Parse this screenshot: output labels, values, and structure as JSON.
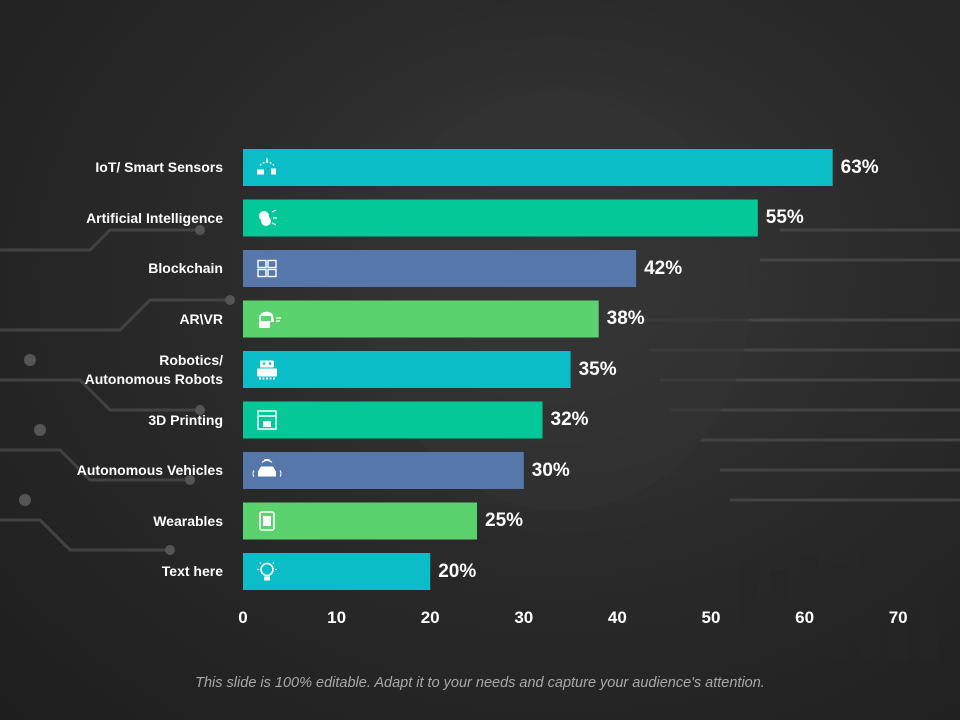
{
  "chart_data": {
    "type": "bar",
    "orientation": "horizontal",
    "categories": [
      "IoT/ Smart Sensors",
      "Artificial Intelligence",
      "Blockchain",
      "AR\\VR",
      "Robotics/\nAutonomous Robots",
      "3D Printing",
      "Autonomous Vehicles",
      "Wearables",
      "Text here"
    ],
    "values": [
      63,
      55,
      42,
      38,
      35,
      32,
      30,
      25,
      20
    ],
    "value_labels": [
      "63%",
      "55%",
      "42%",
      "38%",
      "35%",
      "32%",
      "30%",
      "25%",
      "20%"
    ],
    "icons": [
      "iot-sensor-icon",
      "brain-icon",
      "blockchain-icon",
      "vr-head-icon",
      "robot-icon",
      "3d-printer-icon",
      "autonomous-car-icon",
      "smartwatch-icon",
      "lightbulb-icon"
    ],
    "bar_colors": [
      "#0bbdc6",
      "#04c897",
      "#5577aa",
      "#5ad36f",
      "#0bbdc6",
      "#04c897",
      "#5577aa",
      "#5ad36f",
      "#0bbdc6"
    ],
    "xlim": [
      0,
      70
    ],
    "xticks": [
      "0",
      "10",
      "20",
      "30",
      "40",
      "50",
      "60",
      "70"
    ],
    "title": "",
    "xlabel": "",
    "ylabel": "",
    "grid": false
  },
  "footer": "This slide is 100% editable. Adapt it to your needs and capture your audience's attention."
}
